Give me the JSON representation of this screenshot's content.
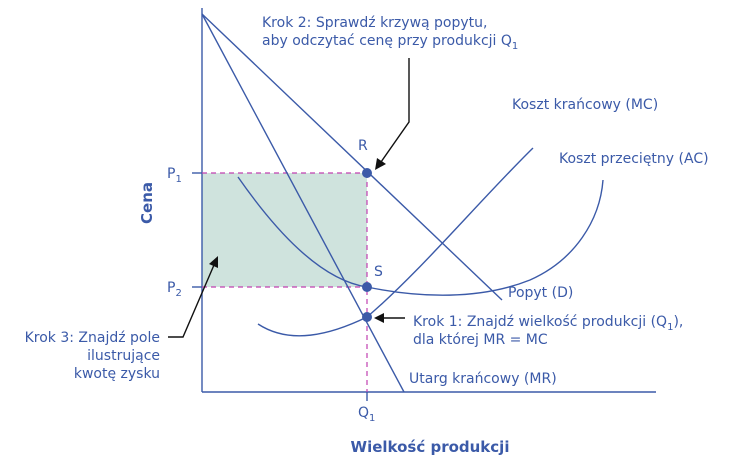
{
  "axes": {
    "y_title": "Cena",
    "x_title": "Wielkość produkcji",
    "price_high": {
      "base": "P",
      "sub": "1"
    },
    "price_low": {
      "base": "P",
      "sub": "2"
    },
    "quantity": {
      "base": "Q",
      "sub": "1"
    }
  },
  "curves": {
    "demand": "Popyt (D)",
    "marginal_revenue": "Utarg krańcowy (MR)",
    "marginal_cost": "Koszt krańcowy (MC)",
    "average_cost": "Koszt przeciętny (AC)"
  },
  "points": {
    "r": "R",
    "s": "S"
  },
  "steps": {
    "step1": {
      "line1_pre": "Krok 1: Znajdź wielkość produkcji (Q",
      "line1_sub": "1",
      "line1_post": "),",
      "line2": "dla której MR = MC"
    },
    "step2": {
      "line1": "Krok 2: Sprawdź krzywą popytu,",
      "line2_pre": "aby odczytać cenę przy produkcji Q",
      "line2_sub": "1"
    },
    "step3": {
      "line1": "Krok 3: Znajdź pole",
      "line2": "ilustrujące",
      "line3": "kwotę zysku"
    }
  },
  "colors": {
    "line": "#3b5aa8",
    "profit_area": "#cfe3dd",
    "guide": "#c040b0"
  }
}
